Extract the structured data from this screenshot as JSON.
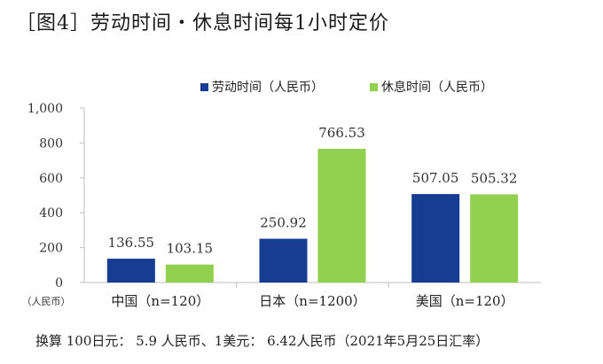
{
  "title": "［图4］劳动时间・休息时间每1小时定价",
  "footnote": "换算 100日元： 5.9 人民币、1美元： 6.42人民币（2021年5月25日汇率）",
  "colors": {
    "labor": "#173d93",
    "rest": "#92d050"
  },
  "chart_data": {
    "type": "bar",
    "categories": [
      "中国（n=120）",
      "日本（n=1200）",
      "美国（n=120）"
    ],
    "series": [
      {
        "name": "劳动时间（人民币）",
        "values": [
          136.55,
          250.92,
          507.05
        ]
      },
      {
        "name": "休息时间（人民币）",
        "values": [
          103.15,
          766.53,
          505.32
        ]
      }
    ],
    "value_labels": [
      [
        "136.55",
        "250.92",
        "507.05"
      ],
      [
        "103.15",
        "766.53",
        "505.32"
      ]
    ],
    "ylim": [
      0,
      1000
    ],
    "yticks": [
      0,
      200,
      400,
      600,
      800,
      1000
    ],
    "ytick_labels": [
      "0",
      "200",
      "400",
      "600",
      "800",
      "1,000"
    ],
    "unit_label": "（人民币）",
    "legend_position": "top",
    "grid": false
  }
}
